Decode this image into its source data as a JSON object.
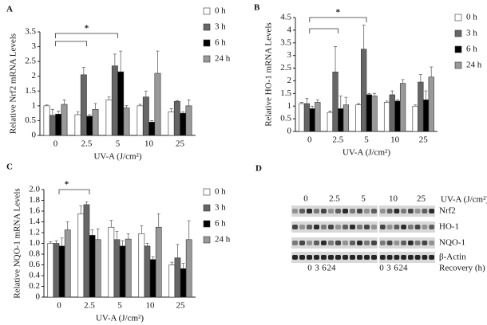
{
  "chart_data": [
    {
      "type": "bar",
      "panel": "A",
      "ylabel": "Relative Nrf2 mRNA Levels",
      "xlabel": "UV-A (J/cm²)",
      "annotation": "*",
      "categories": [
        "0",
        "2.5",
        "5",
        "10",
        "25"
      ],
      "ylim": [
        0,
        3.5
      ],
      "yticks": [
        0,
        0.5,
        1,
        1.5,
        2,
        2.5,
        3,
        3.5
      ],
      "series": [
        {
          "name": "0 h",
          "color": "#ffffff",
          "values": [
            1.0,
            0.7,
            1.2,
            1.0,
            0.8
          ],
          "errors": [
            0.03,
            0.1,
            0.1,
            0.05,
            0.1
          ]
        },
        {
          "name": "3 h",
          "color": "#666666",
          "values": [
            0.68,
            2.05,
            2.35,
            1.3,
            1.15
          ],
          "errors": [
            0.2,
            0.25,
            0.4,
            0.2,
            0.03
          ]
        },
        {
          "name": "6 h",
          "color": "#000000",
          "values": [
            0.72,
            0.65,
            2.15,
            0.45,
            0.75
          ],
          "errors": [
            0.1,
            0.05,
            0.7,
            0.05,
            0.05
          ]
        },
        {
          "name": "24 h",
          "color": "#999999",
          "values": [
            1.05,
            0.88,
            0.93,
            2.1,
            1.0
          ],
          "errors": [
            0.15,
            0.2,
            0.08,
            0.75,
            0.2
          ]
        }
      ]
    },
    {
      "type": "bar",
      "panel": "B",
      "ylabel": "Relative HO-1 mRNA Levels",
      "xlabel": "UV-A (J/cm²)",
      "annotation": "*",
      "categories": [
        "0",
        "2.5",
        "5",
        "10",
        "25"
      ],
      "ylim": [
        0,
        4.5
      ],
      "yticks": [
        0,
        0.5,
        1,
        1.5,
        2,
        2.5,
        3,
        3.5,
        4,
        4.5
      ],
      "series": [
        {
          "name": "0 h",
          "color": "#ffffff",
          "values": [
            1.1,
            0.75,
            1.05,
            1.15,
            1.0
          ],
          "errors": [
            0.05,
            0.05,
            0.05,
            0.05,
            0.05
          ]
        },
        {
          "name": "3 h",
          "color": "#666666",
          "values": [
            1.1,
            2.35,
            3.25,
            1.45,
            1.95
          ],
          "errors": [
            0.2,
            1.0,
            0.95,
            0.15,
            0.3
          ]
        },
        {
          "name": "6 h",
          "color": "#000000",
          "values": [
            0.9,
            0.9,
            1.45,
            1.2,
            1.25
          ],
          "errors": [
            0.1,
            0.5,
            0.05,
            0.05,
            0.35
          ]
        },
        {
          "name": "24 h",
          "color": "#999999",
          "values": [
            1.15,
            1.05,
            1.4,
            1.9,
            2.15
          ],
          "errors": [
            0.1,
            0.3,
            0.1,
            0.15,
            0.4
          ]
        }
      ]
    },
    {
      "type": "bar",
      "panel": "C",
      "ylabel": "Relative NQO-1 mRNA Levels",
      "xlabel": "UV-A (J/cm²)",
      "annotation": "*",
      "categories": [
        "0",
        "2.5",
        "5",
        "10",
        "25"
      ],
      "ylim": [
        0,
        2.0
      ],
      "yticks": [
        0,
        0.2,
        0.4,
        0.6,
        0.8,
        {
          "value": 1.0,
          "label": "1.0"
        },
        1.2,
        1.4,
        1.6,
        1.8,
        {
          "value": 2.0,
          "label": "2.0"
        }
      ],
      "series": [
        {
          "name": "0 h",
          "color": "#ffffff",
          "values": [
            1.0,
            1.55,
            1.3,
            1.18,
            0.6
          ],
          "errors": [
            0.03,
            0.15,
            0.13,
            0.15,
            0.05
          ]
        },
        {
          "name": "3 h",
          "color": "#666666",
          "values": [
            1.0,
            1.72,
            1.07,
            0.95,
            0.73
          ],
          "errors": [
            0.05,
            0.05,
            0.15,
            0.05,
            0.25
          ]
        },
        {
          "name": "6 h",
          "color": "#000000",
          "values": [
            0.95,
            1.15,
            0.95,
            0.7,
            0.53
          ],
          "errors": [
            0.15,
            0.1,
            0.1,
            0.05,
            0.1
          ]
        },
        {
          "name": "24 h",
          "color": "#999999",
          "values": [
            1.25,
            1.07,
            1.08,
            1.3,
            1.07
          ],
          "errors": [
            0.15,
            0.2,
            0.1,
            0.25,
            0.35
          ]
        }
      ]
    }
  ],
  "blot": {
    "panel": "D",
    "doses": [
      "0",
      "2.5",
      "5",
      "10",
      "25"
    ],
    "dose_label": "UV-A (J/cm²)",
    "bands": [
      "Nrf2",
      "HO-1",
      "NQO-1",
      "β-Actin"
    ],
    "recovery_lanes": [
      "0",
      "3",
      "6",
      "24"
    ],
    "recovery_label": "Recovery (h)"
  }
}
